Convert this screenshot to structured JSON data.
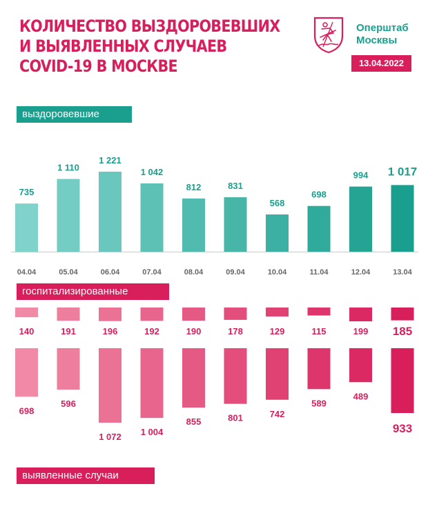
{
  "title_lines": [
    "КОЛИЧЕСТВО ВЫЗДОРОВЕВШИХ",
    "И ВЫЯВЛЕННЫХ СЛУЧАЕВ",
    "COVID-19 В МОСКВЕ"
  ],
  "logo": {
    "line1": "Оперштаб",
    "line2": "Москвы",
    "emblem_icon": "moscow-coat-of-arms-icon"
  },
  "date": "13.04.2022",
  "labels": {
    "recovered": "выздоровевшие",
    "hospitalized": "госпитализированные",
    "cases": "выявленные случаи"
  },
  "colors": {
    "teal": "#1a9e8d",
    "crimson": "#d81e5b",
    "recovered_start": "#7fd3cb",
    "recovered_end": "#1a9e8d",
    "pink_start": "#f08aa6",
    "pink_end": "#d81e5b"
  },
  "chart_data": {
    "type": "bar",
    "categories": [
      "04.04",
      "05.04",
      "06.04",
      "07.04",
      "08.04",
      "09.04",
      "10.04",
      "11.04",
      "12.04",
      "13.04"
    ],
    "series": [
      {
        "name": "выздоровевшие",
        "values": [
          735,
          1110,
          1221,
          1042,
          812,
          831,
          568,
          698,
          994,
          1017
        ],
        "display": [
          "735",
          "1 110",
          "1 221",
          "1 042",
          "812",
          "831",
          "568",
          "698",
          "994",
          "1 017"
        ]
      },
      {
        "name": "госпитализированные",
        "values": [
          140,
          191,
          196,
          192,
          190,
          178,
          129,
          115,
          199,
          185
        ],
        "display": [
          "140",
          "191",
          "196",
          "192",
          "190",
          "178",
          "129",
          "115",
          "199",
          "185"
        ]
      },
      {
        "name": "выявленные случаи",
        "values": [
          698,
          596,
          1072,
          1004,
          855,
          801,
          742,
          589,
          489,
          933
        ],
        "display": [
          "698",
          "596",
          "1 072",
          "1 004",
          "855",
          "801",
          "742",
          "589",
          "489",
          "933"
        ]
      }
    ]
  }
}
